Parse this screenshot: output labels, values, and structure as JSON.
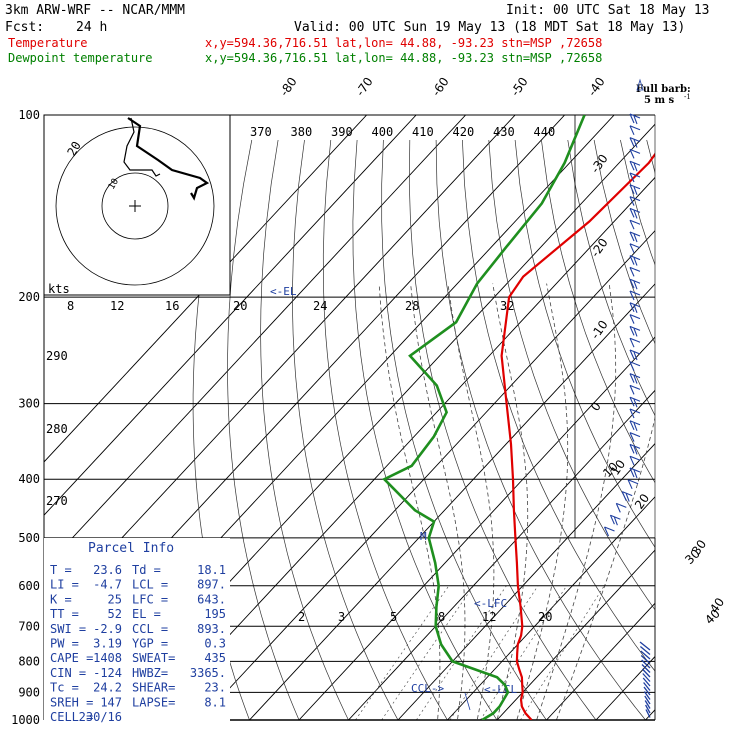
{
  "header": {
    "model": "3km ARW-WRF -- NCAR/MMM",
    "init": "Init: 00 UTC Sat 18 May 13",
    "fcst_label": "Fcst:",
    "fcst_value": "24 h",
    "valid": "Valid: 00 UTC Sun 19 May 13 (18 MDT Sat 18 May 13)",
    "temperature_label": "Temperature",
    "dewpoint_label": "Dewpoint temperature",
    "location_info": "x,y=594.36,716.51   lat,lon= 44.88, -93.23   stn=MSP ,72658",
    "barb_legend_title": "Full barb:",
    "barb_legend_value": "5 m s"
  },
  "colors": {
    "temperature": "#e00000",
    "dewpoint": "#1f8f1f",
    "parcel": "#1f3fa0",
    "barbs": "#1f3fa0"
  },
  "chart_data": {
    "type": "skew-T log-p sounding",
    "y_axis": "pressure (hPa), log scale",
    "pressure_ticks": [
      100,
      200,
      300,
      400,
      500,
      600,
      700,
      800,
      900,
      1000
    ],
    "skewed_isotherm_labels": [
      "-80",
      "-70",
      "-60",
      "-50",
      "-40",
      "-30",
      "-20",
      "-10",
      "0",
      "10",
      "20",
      "30",
      "40"
    ],
    "theta_e_labels": [
      "370",
      "380",
      "390",
      "400",
      "410",
      "420",
      "430",
      "440"
    ],
    "theta_e_left_labels": [
      "290",
      "280",
      "270"
    ],
    "mixing_ratio_labels": [
      "2",
      "3",
      "5",
      "8",
      "12",
      "20"
    ],
    "hodograph_kts_label": "kts",
    "hodograph_speed_labels": [
      "8",
      "12",
      "16",
      "20",
      "24",
      "28",
      "32"
    ],
    "hodograph_ring_labels": [
      "20",
      "10"
    ],
    "temperature_series": [
      {
        "p": 1000,
        "t": 27.0
      },
      {
        "p": 975,
        "t": 24.5
      },
      {
        "p": 950,
        "t": 22.5
      },
      {
        "p": 925,
        "t": 21.0
      },
      {
        "p": 900,
        "t": 20.0
      },
      {
        "p": 875,
        "t": 18.5
      },
      {
        "p": 850,
        "t": 17.0
      },
      {
        "p": 825,
        "t": 15.0
      },
      {
        "p": 800,
        "t": 13.0
      },
      {
        "p": 775,
        "t": 11.5
      },
      {
        "p": 750,
        "t": 10.0
      },
      {
        "p": 725,
        "t": 9.0
      },
      {
        "p": 700,
        "t": 7.5
      },
      {
        "p": 650,
        "t": 3.5
      },
      {
        "p": 600,
        "t": -1.0
      },
      {
        "p": 550,
        "t": -5.5
      },
      {
        "p": 500,
        "t": -10.5
      },
      {
        "p": 450,
        "t": -16.0
      },
      {
        "p": 400,
        "t": -22.0
      },
      {
        "p": 350,
        "t": -29.0
      },
      {
        "p": 300,
        "t": -37.5
      },
      {
        "p": 250,
        "t": -47.5
      },
      {
        "p": 200,
        "t": -57.0
      },
      {
        "p": 185,
        "t": -58.0
      },
      {
        "p": 150,
        "t": -55.0
      },
      {
        "p": 120,
        "t": -54.0
      },
      {
        "p": 100,
        "t": -56.0
      }
    ],
    "dewpoint_series": [
      {
        "p": 1000,
        "t": 17.0
      },
      {
        "p": 975,
        "t": 18.0
      },
      {
        "p": 950,
        "t": 18.0
      },
      {
        "p": 925,
        "t": 17.5
      },
      {
        "p": 900,
        "t": 17.0
      },
      {
        "p": 875,
        "t": 15.0
      },
      {
        "p": 850,
        "t": 12.0
      },
      {
        "p": 800,
        "t": 0.0
      },
      {
        "p": 750,
        "t": -5.5
      },
      {
        "p": 700,
        "t": -10.0
      },
      {
        "p": 650,
        "t": -13.5
      },
      {
        "p": 600,
        "t": -17.0
      },
      {
        "p": 550,
        "t": -22.0
      },
      {
        "p": 500,
        "t": -28.0
      },
      {
        "p": 470,
        "t": -30.0
      },
      {
        "p": 450,
        "t": -36.0
      },
      {
        "p": 400,
        "t": -48.0
      },
      {
        "p": 380,
        "t": -45.0
      },
      {
        "p": 340,
        "t": -46.0
      },
      {
        "p": 310,
        "t": -48.0
      },
      {
        "p": 280,
        "t": -55.0
      },
      {
        "p": 250,
        "t": -66.0
      },
      {
        "p": 220,
        "t": -63.0
      },
      {
        "p": 190,
        "t": -66.0
      },
      {
        "p": 165,
        "t": -67.0
      },
      {
        "p": 140,
        "t": -68.0
      },
      {
        "p": 120,
        "t": -71.0
      },
      {
        "p": 100,
        "t": -76.0
      }
    ],
    "parcel_levels": {
      "lcl": 897,
      "lfc": 643,
      "el": 195,
      "ccl": 893
    },
    "level_markers": [
      "<-EL",
      "<-LFC",
      "CCL->",
      "<-LCL",
      "M"
    ],
    "barb_scale_labels": [
      "10",
      "30",
      "40"
    ]
  },
  "parcel_info": {
    "title": "Parcel Info",
    "rows": [
      {
        "k1": "T   =",
        "v1": "23.6",
        "k2": "Td =",
        "v2": "18.1"
      },
      {
        "k1": "LI  =",
        "v1": "-4.7",
        "k2": "LCL =",
        "v2": "897."
      },
      {
        "k1": "K   =",
        "v1": "25",
        "k2": "LFC =",
        "v2": "643."
      },
      {
        "k1": "TT  =",
        "v1": "52",
        "k2": "EL  =",
        "v2": "195"
      },
      {
        "k1": "SWI =",
        "v1": "-2.9",
        "k2": "CCL =",
        "v2": "893."
      },
      {
        "k1": "PW  =",
        "v1": "3.19",
        "k2": "YGP =",
        "v2": "0.3"
      },
      {
        "k1": "CAPE =",
        "v1": "1408",
        "k2": "SWEAT=",
        "v2": "435"
      },
      {
        "k1": "CIN =",
        "v1": "-124",
        "k2": "HWBZ=",
        "v2": "3365."
      },
      {
        "k1": "Tc  =",
        "v1": "24.2",
        "k2": "SHEAR=",
        "v2": "23."
      },
      {
        "k1": "SREH =",
        "v1": "147",
        "k2": "LAPSE=",
        "v2": "8.1"
      },
      {
        "k1": "CELL =",
        "v1": "230/16",
        "k2": "",
        "v2": ""
      }
    ]
  }
}
